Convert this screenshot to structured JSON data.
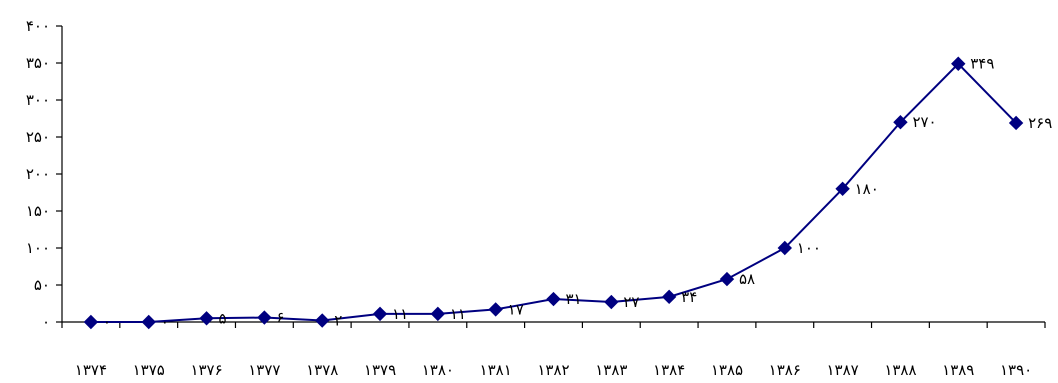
{
  "chart_data": {
    "type": "line",
    "title": "",
    "xlabel": "",
    "ylabel": "",
    "categories": [
      "۱۳۷۴",
      "۱۳۷۵",
      "۱۳۷۶",
      "۱۳۷۷",
      "۱۳۷۸",
      "۱۳۷۹",
      "۱۳۸۰",
      "۱۳۸۱",
      "۱۳۸۲",
      "۱۳۸۳",
      "۱۳۸۴",
      "۱۳۸۵",
      "۱۳۸۶",
      "۱۳۸۷",
      "۱۳۸۸",
      "۱۳۸۹",
      "۱۳۹۰"
    ],
    "series": [
      {
        "values": [
          0,
          0,
          5,
          6,
          2,
          11,
          11,
          17,
          31,
          27,
          34,
          58,
          100,
          180,
          270,
          349,
          269
        ],
        "data_labels": [
          "۰",
          "۰",
          "۵",
          "۶",
          "۲",
          "۱۱",
          "۱۱",
          "۱۷",
          "۳۱",
          "۲۷",
          "۳۴",
          "۵۸",
          "۱۰۰",
          "۱۸۰",
          "۲۷۰",
          "۳۴۹",
          "۲۶۹"
        ],
        "color": "#000080",
        "marker": "diamond"
      }
    ],
    "ylim": [
      0,
      400
    ],
    "yticks": [
      0,
      50,
      100,
      150,
      200,
      250,
      300,
      350,
      400
    ],
    "ytick_labels": [
      "۰",
      "۵۰",
      "۱۰۰",
      "۱۵۰",
      "۲۰۰",
      "۲۵۰",
      "۳۰۰",
      "۳۵۰",
      "۴۰۰"
    ],
    "grid": false,
    "legend": "none"
  }
}
